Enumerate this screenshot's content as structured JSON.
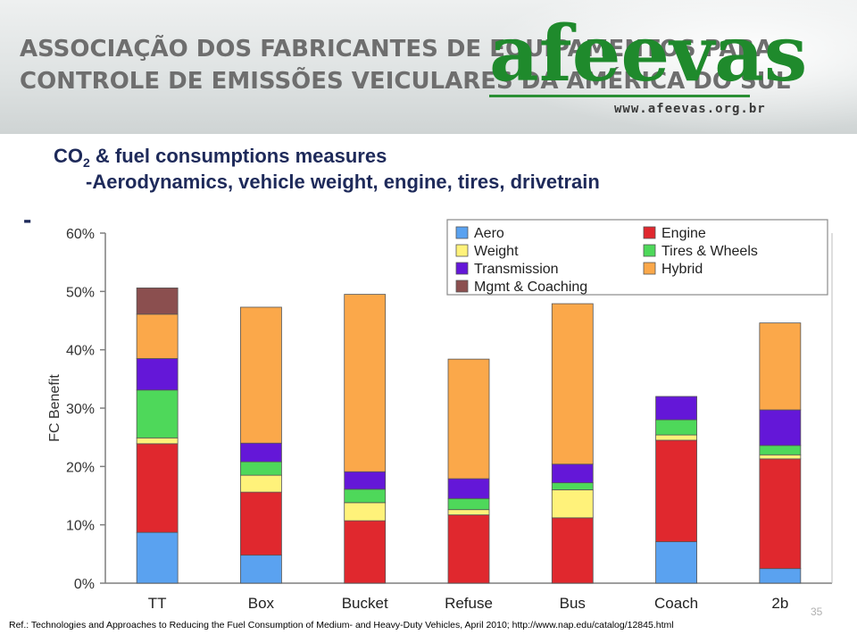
{
  "header": {
    "org_line1": "ASSOCIAÇÃO DOS FABRICANTES DE EQUIPAMENTOS PARA",
    "org_line2": "CONTROLE DE EMISSÕES VEICULARES DA AMÉRICA DO SUL",
    "logo": "afeevas",
    "website": "www.afeevas.org.br"
  },
  "slide": {
    "title_main": "CO",
    "title_sub": "2",
    "title_rest": " & fuel consumptions measures",
    "subtitle": "-Aerodynamics, vehicle weight, engine, tires, drivetrain",
    "bullet": "-",
    "reference": "Ref.: Technologies and Approaches to Reducing the Fuel Consumption of Medium- and Heavy-Duty Vehicles, April 2010; http://www.nap.edu/catalog/12845.html",
    "page_number": "35"
  },
  "chart_data": {
    "type": "bar",
    "stacked": true,
    "title": "",
    "xlabel": "",
    "ylabel": "FC Benefit",
    "ylim": [
      0,
      60
    ],
    "yticks": [
      "0%",
      "10%",
      "20%",
      "30%",
      "40%",
      "50%",
      "60%"
    ],
    "grid": false,
    "legend_position": "top-right",
    "categories": [
      "TT",
      "Box",
      "Bucket",
      "Refuse",
      "Bus",
      "Coach",
      "2b"
    ],
    "series": [
      {
        "name": "Aero",
        "color": "#5aa2f0",
        "values": [
          8.7,
          4.8,
          0,
          0,
          0,
          7.1,
          2.5
        ]
      },
      {
        "name": "Engine",
        "color": "#e0282e",
        "values": [
          15.2,
          10.8,
          10.7,
          11.7,
          11.2,
          17.4,
          18.8
        ]
      },
      {
        "name": "Weight",
        "color": "#fff27a",
        "values": [
          1.0,
          2.9,
          3.1,
          0.9,
          4.8,
          0.9,
          0.7
        ]
      },
      {
        "name": "Tires & Wheels",
        "color": "#4ed85a",
        "values": [
          8.2,
          2.3,
          2.3,
          1.9,
          1.2,
          2.6,
          1.6
        ]
      },
      {
        "name": "Transmission",
        "color": "#6417d8",
        "values": [
          5.4,
          3.2,
          3.0,
          3.4,
          3.2,
          4.0,
          6.1
        ]
      },
      {
        "name": "Hybrid",
        "color": "#fba84a",
        "values": [
          7.6,
          23.3,
          30.4,
          20.5,
          27.5,
          0,
          14.9
        ]
      },
      {
        "name": "Mgmt & Coaching",
        "color": "#8b4f4f",
        "values": [
          4.5,
          0,
          0,
          0,
          0,
          0,
          0
        ]
      }
    ]
  }
}
